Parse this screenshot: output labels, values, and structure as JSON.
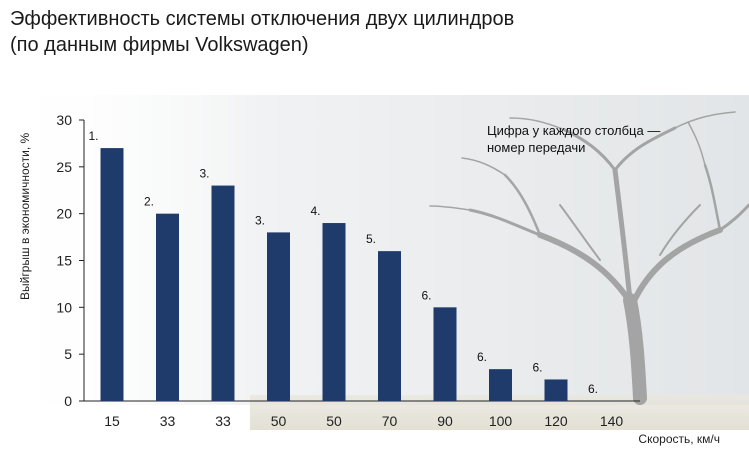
{
  "title_lines": [
    "Эффективность системы отключения двух цилиндров",
    "(по данным фирмы Volkswagen)"
  ],
  "colors": {
    "bar": "#1f3b6b",
    "background_tree": "#9a9a9a",
    "sky": "#e9ecee",
    "ground": "#e6e3d8"
  },
  "chart_data": {
    "type": "bar",
    "categories": [
      "15",
      "33",
      "33",
      "50",
      "50",
      "70",
      "90",
      "100",
      "120",
      "140"
    ],
    "values": [
      27,
      20,
      23,
      18,
      19,
      16,
      10,
      3.4,
      2.3,
      0
    ],
    "bar_labels": [
      "1.",
      "2.",
      "3.",
      "3.",
      "4.",
      "5.",
      "6.",
      "6.",
      "6.",
      "6."
    ],
    "title": "",
    "xlabel": "Скорость, км/ч",
    "ylabel": "Выйгрыш в экономичности, %",
    "ylim": [
      0,
      30
    ],
    "yticks": [
      0,
      5,
      10,
      15,
      20,
      25,
      30
    ],
    "annotation_lines": [
      "Цифра у каждого столбца —",
      "номер передачи"
    ],
    "grid": false,
    "legend": "none"
  }
}
